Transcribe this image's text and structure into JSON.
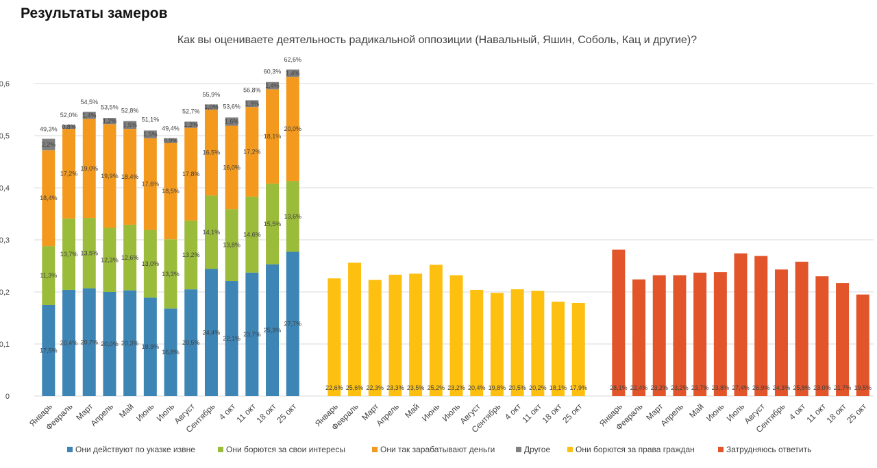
{
  "header": {
    "title": "Результаты замеров"
  },
  "chart_data": {
    "type": "bar",
    "title": "Как вы оцениваете деятельность радикальной оппозиции (Навальный, Яшин, Соболь, Кац и другие)?",
    "categories": [
      "Январь",
      "Февраль",
      "Март",
      "Апрель",
      "Май",
      "Июнь",
      "Июль",
      "Август",
      "Сентябрь",
      "4 окт",
      "11 окт",
      "18 окт",
      "25 окт"
    ],
    "ylim": [
      0,
      0.65
    ],
    "yticks": [
      0,
      {
        "value": 0.1,
        "label": "0,1"
      },
      {
        "value": 0.2,
        "label": "0,2"
      },
      {
        "value": 0.3,
        "label": "0,3"
      },
      {
        "value": 0.4,
        "label": "0,4"
      },
      {
        "value": 0.5,
        "label": "0,5"
      },
      {
        "value": 0.6,
        "label": "0,6"
      }
    ],
    "grid": true,
    "legend": "bottom",
    "series": [
      {
        "name": "Они действуют по указке извне",
        "color": "#3d85b5",
        "group": 0,
        "values": [
          0.175,
          0.204,
          0.207,
          0.2,
          0.203,
          0.189,
          0.168,
          0.205,
          0.244,
          0.221,
          0.237,
          0.253,
          0.277
        ],
        "value_labels": [
          "17,5%",
          "20,4%",
          "20,7%",
          "20,0%",
          "20,3%",
          "18,9%",
          "16,8%",
          "20,5%",
          "24,4%",
          "22,1%",
          "23,7%",
          "25,3%",
          "27,7%"
        ]
      },
      {
        "name": "Они борются за свои интересы",
        "color": "#9bbb3b",
        "group": 0,
        "values": [
          0.113,
          0.137,
          0.135,
          0.123,
          0.126,
          0.13,
          0.133,
          0.132,
          0.141,
          0.138,
          0.146,
          0.155,
          0.136
        ],
        "value_labels": [
          "11,3%",
          "13,7%",
          "13,5%",
          "12,3%",
          "12,6%",
          "13,0%",
          "13,3%",
          "13,2%",
          "14,1%",
          "13,8%",
          "14,6%",
          "15,5%",
          "13,6%"
        ]
      },
      {
        "name": "Они так зарабатывают деньги",
        "color": "#f39a1e",
        "group": 0,
        "values": [
          0.184,
          0.172,
          0.19,
          0.199,
          0.184,
          0.176,
          0.185,
          0.178,
          0.165,
          0.16,
          0.172,
          0.181,
          0.2
        ],
        "value_labels": [
          "18,4%",
          "17,2%",
          "19,0%",
          "19,9%",
          "18,4%",
          "17,6%",
          "18,5%",
          "17,8%",
          "16,5%",
          "16,0%",
          "17,2%",
          "18,1%",
          "20,0%"
        ]
      },
      {
        "name": "Другое",
        "color": "#808080",
        "group": 0,
        "values": [
          0.022,
          0.008,
          0.014,
          0.012,
          0.015,
          0.015,
          0.009,
          0.012,
          0.01,
          0.016,
          0.013,
          0.014,
          0.014
        ],
        "value_labels": [
          "2,2%",
          "0,8%",
          "1,4%",
          "1,2%",
          "1,5%",
          "1,5%",
          "0,9%",
          "1,2%",
          "1,0%",
          "1,6%",
          "1,3%",
          "1,4%",
          "1,4%"
        ]
      },
      {
        "name": "Они борются за права граждан",
        "color": "#fdc010",
        "group": 1,
        "values": [
          0.226,
          0.256,
          0.223,
          0.233,
          0.235,
          0.252,
          0.232,
          0.204,
          0.198,
          0.205,
          0.202,
          0.181,
          0.179
        ],
        "value_labels": [
          "22,6%",
          "25,6%",
          "22,3%",
          "23,3%",
          "23,5%",
          "25,2%",
          "23,2%",
          "20,4%",
          "19,8%",
          "20,5%",
          "20,2%",
          "18,1%",
          "17,9%"
        ]
      },
      {
        "name": "Затрудняюсь ответить",
        "color": "#e2542a",
        "group": 2,
        "values": [
          0.281,
          0.224,
          0.232,
          0.232,
          0.237,
          0.238,
          0.274,
          0.269,
          0.243,
          0.258,
          0.23,
          0.217,
          0.195
        ],
        "value_labels": [
          "28,1%",
          "22,4%",
          "23,2%",
          "23,2%",
          "23,7%",
          "23,8%",
          "27,4%",
          "26,9%",
          "24,3%",
          "25,8%",
          "23,0%",
          "21,7%",
          "19,5%"
        ]
      }
    ],
    "totals": [
      0.493,
      0.52,
      0.545,
      0.535,
      0.528,
      0.511,
      0.494,
      0.527,
      0.559,
      0.536,
      0.568,
      0.603,
      0.626
    ],
    "total_labels": [
      "49,3%",
      "52,0%",
      "54,5%",
      "53,5%",
      "52,8%",
      "51,1%",
      "49,4%",
      "52,7%",
      "55,9%",
      "53,6%",
      "56,8%",
      "60,3%",
      "62,6%"
    ]
  }
}
